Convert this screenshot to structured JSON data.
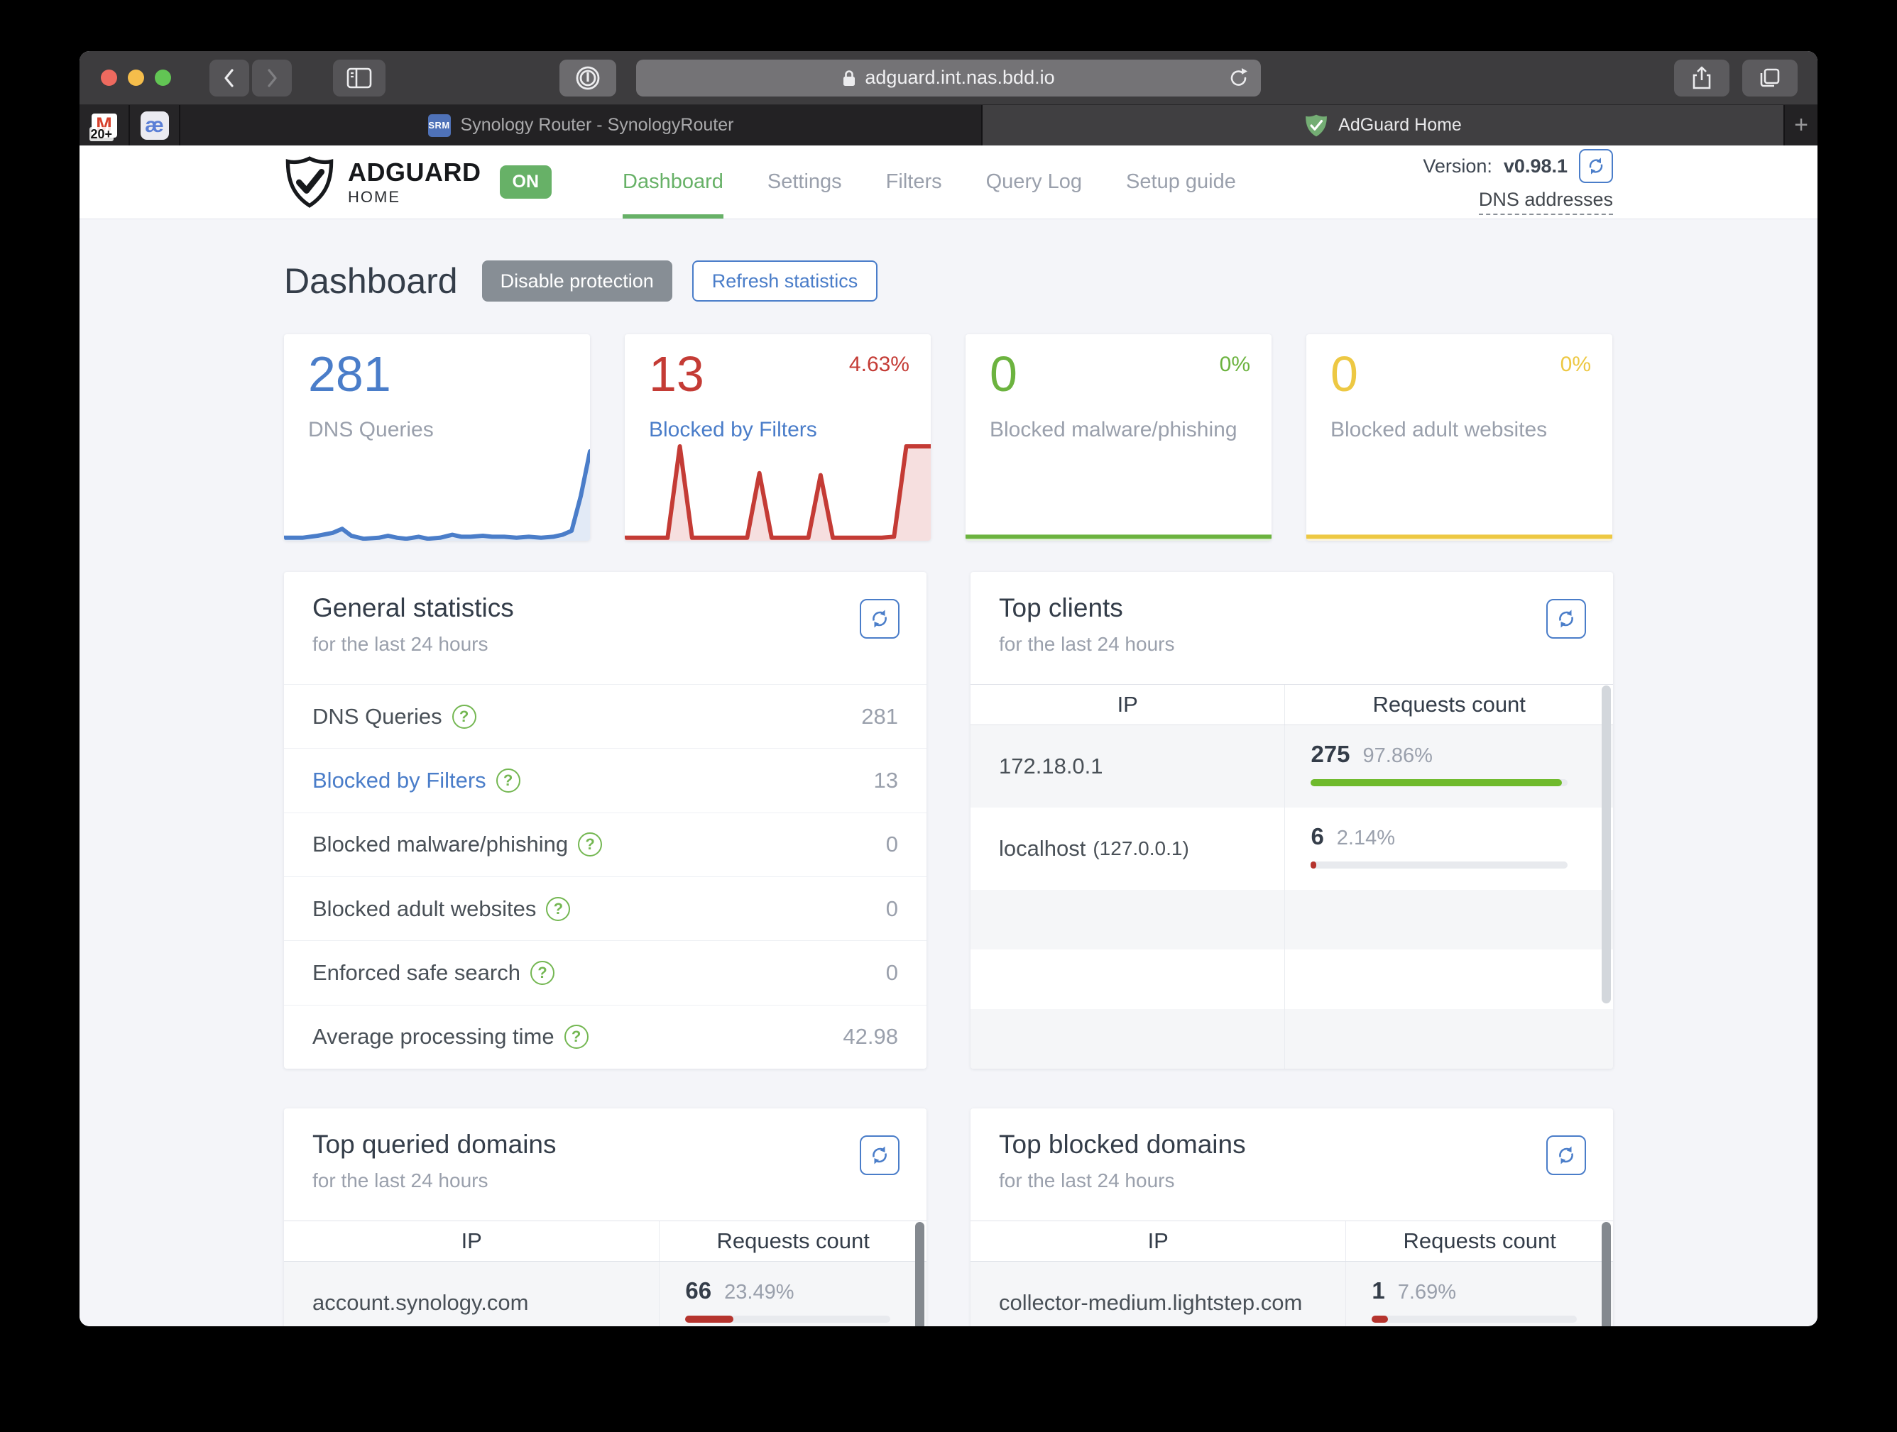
{
  "browser": {
    "url": "adguard.int.nas.bdd.io",
    "pinned_tabs": {
      "gmail_badge": "20+",
      "ae_glyph": "æ"
    },
    "tabs": [
      {
        "title": "Synology Router - SynologyRouter",
        "favicon": "SRM"
      },
      {
        "title": "AdGuard Home"
      }
    ],
    "new_tab_label": "+"
  },
  "header": {
    "brand": "ADGUARD",
    "brand_sub": "HOME",
    "status_badge": "ON",
    "nav": [
      {
        "label": "Dashboard"
      },
      {
        "label": "Settings"
      },
      {
        "label": "Filters"
      },
      {
        "label": "Query Log"
      },
      {
        "label": "Setup guide"
      }
    ],
    "version_label": "Version:",
    "version_value": "v0.98.1",
    "dns_link": "DNS addresses"
  },
  "main": {
    "title": "Dashboard",
    "disable_button": "Disable protection",
    "refresh_button": "Refresh statistics",
    "stat_cards": [
      {
        "value": "281",
        "label": "DNS Queries",
        "percent": "",
        "accent": "#4a7dc9",
        "label_color": "#9aa0ac",
        "spark": [
          [
            0,
            3
          ],
          [
            6,
            3
          ],
          [
            11,
            5
          ],
          [
            16,
            8
          ],
          [
            19,
            12
          ],
          [
            22,
            5
          ],
          [
            26,
            2
          ],
          [
            31,
            3
          ],
          [
            34,
            5
          ],
          [
            37,
            3
          ],
          [
            40,
            2
          ],
          [
            44,
            4
          ],
          [
            47,
            2
          ],
          [
            51,
            3
          ],
          [
            55,
            6
          ],
          [
            58,
            4
          ],
          [
            61,
            4
          ],
          [
            65,
            5
          ],
          [
            68,
            4
          ],
          [
            72,
            4
          ],
          [
            76,
            3
          ],
          [
            80,
            4
          ],
          [
            84,
            3
          ],
          [
            88,
            4
          ],
          [
            91,
            6
          ],
          [
            94,
            10
          ],
          [
            97,
            45
          ],
          [
            100,
            90
          ]
        ]
      },
      {
        "value": "13",
        "label": "Blocked by Filters",
        "percent": "4.63%",
        "accent": "#c43b35",
        "label_color": "#4a7dc9",
        "spark": [
          [
            0,
            3
          ],
          [
            14,
            3
          ],
          [
            18,
            95
          ],
          [
            22,
            3
          ],
          [
            40,
            3
          ],
          [
            44,
            68
          ],
          [
            48,
            3
          ],
          [
            60,
            3
          ],
          [
            64,
            66
          ],
          [
            68,
            3
          ],
          [
            84,
            3
          ],
          [
            88,
            4
          ],
          [
            92,
            95
          ],
          [
            100,
            95
          ]
        ]
      },
      {
        "value": "0",
        "label": "Blocked malware/phishing",
        "percent": "0%",
        "accent": "#6cb33f",
        "label_color": "#9aa0ac",
        "spark": [
          [
            0,
            4
          ],
          [
            100,
            4
          ]
        ]
      },
      {
        "value": "0",
        "label": "Blocked adult websites",
        "percent": "0%",
        "accent": "#edc843",
        "label_color": "#9aa0ac",
        "spark": [
          [
            0,
            4
          ],
          [
            100,
            4
          ]
        ]
      }
    ],
    "general": {
      "title": "General statistics",
      "subtitle": "for the last 24 hours",
      "rows": [
        {
          "label": "DNS Queries",
          "value": "281",
          "label_color": "#495057"
        },
        {
          "label": "Blocked by Filters",
          "value": "13",
          "label_color": "#4a7dc9"
        },
        {
          "label": "Blocked malware/phishing",
          "value": "0",
          "label_color": "#495057"
        },
        {
          "label": "Blocked adult websites",
          "value": "0",
          "label_color": "#495057"
        },
        {
          "label": "Enforced safe search",
          "value": "0",
          "label_color": "#495057"
        },
        {
          "label": "Average processing time",
          "value": "42.98",
          "label_color": "#495057"
        }
      ]
    },
    "top_clients": {
      "title": "Top clients",
      "subtitle": "for the last 24 hours",
      "col_ip": "IP",
      "col_count": "Requests count",
      "rows": [
        {
          "ip": "172.18.0.1",
          "suffix": "",
          "count": "275",
          "percent": "97.86%",
          "bar": 97.86,
          "bar_color": "#6fba2c"
        },
        {
          "ip": "localhost",
          "suffix": "(127.0.0.1)",
          "count": "6",
          "percent": "2.14%",
          "bar": 2.14,
          "bar_color": "#b5342e"
        }
      ]
    },
    "top_queried": {
      "title": "Top queried domains",
      "subtitle": "for the last 24 hours",
      "col_ip": "IP",
      "col_count": "Requests count",
      "rows": [
        {
          "ip": "account.synology.com",
          "count": "66",
          "percent": "23.49%",
          "bar": 23.49,
          "bar_color": "#b5342e"
        }
      ]
    },
    "top_blocked": {
      "title": "Top blocked domains",
      "subtitle": "for the last 24 hours",
      "col_ip": "IP",
      "col_count": "Requests count",
      "rows": [
        {
          "ip": "collector-medium.lightstep.com",
          "count": "1",
          "percent": "7.69%",
          "bar": 7.69,
          "bar_color": "#b5342e"
        }
      ]
    }
  }
}
